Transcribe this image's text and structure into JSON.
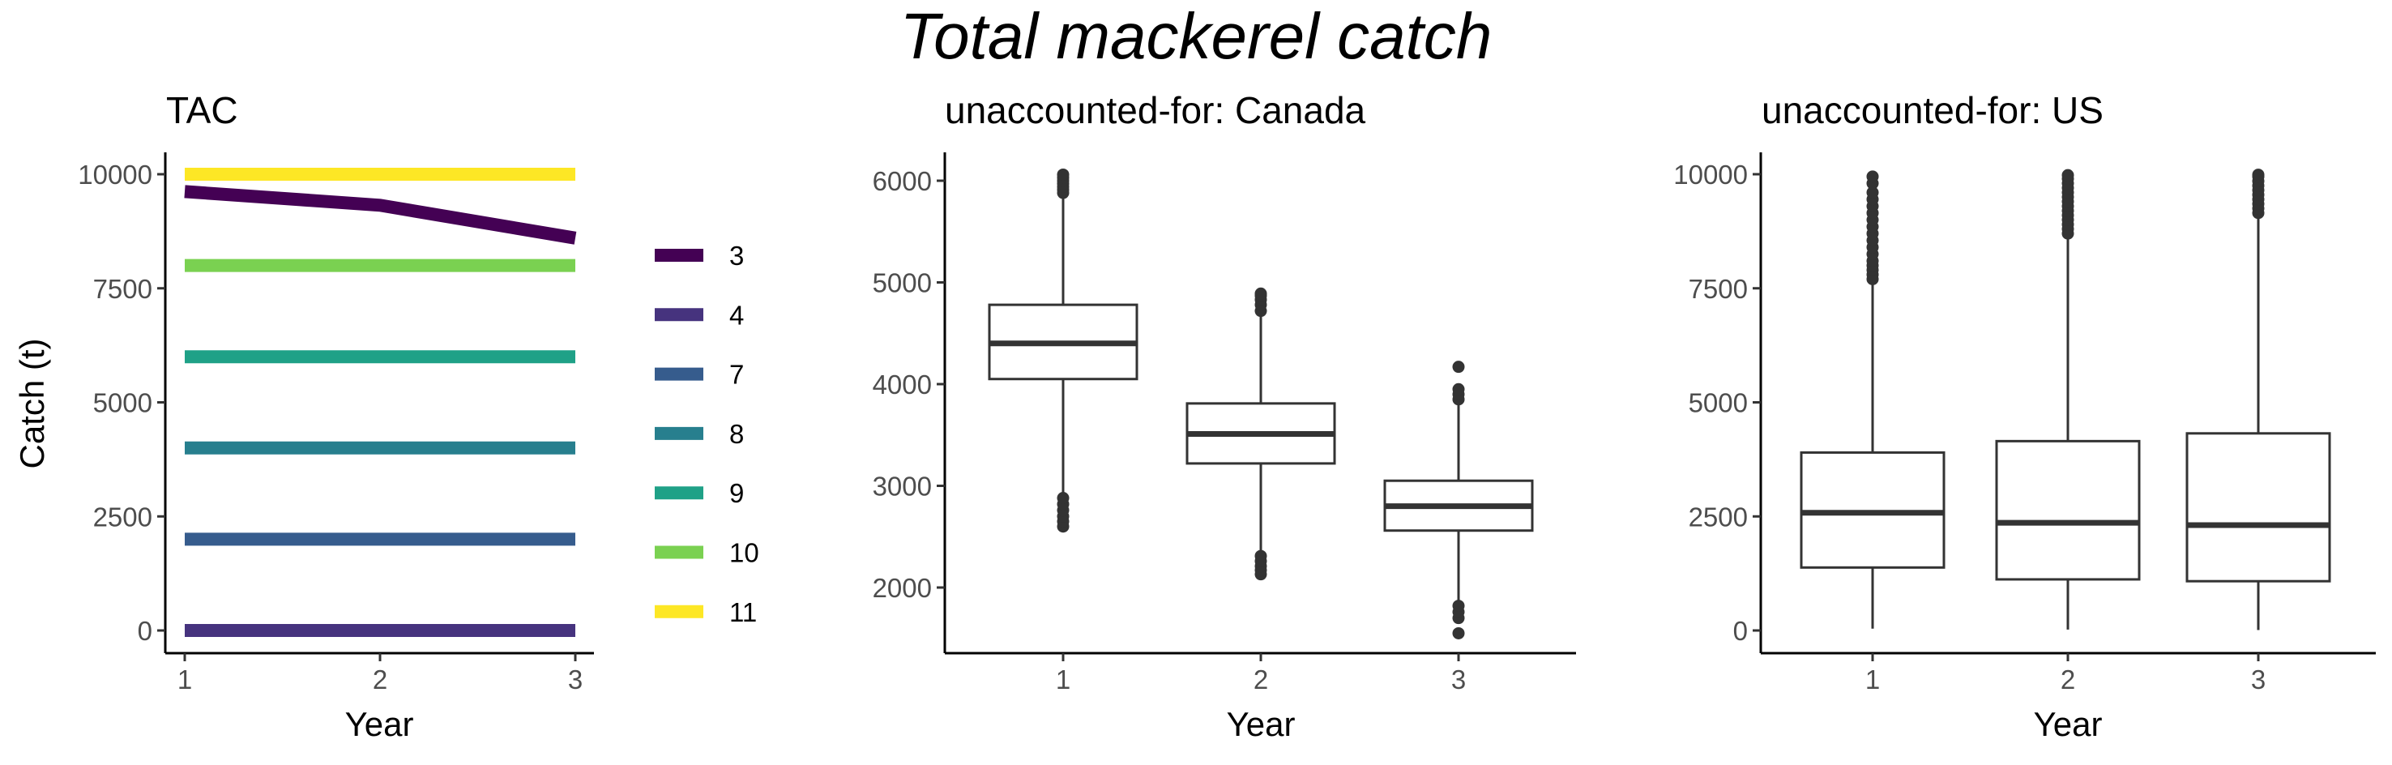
{
  "figure_title": "Total mackerel catch",
  "chart_data": [
    {
      "type": "line",
      "title": "TAC",
      "xlabel": "Year",
      "ylabel": "Catch (t)",
      "x": [
        1,
        2,
        3
      ],
      "xlim": [
        1,
        3
      ],
      "ylim": [
        0,
        10000
      ],
      "xticks": [
        "1",
        "2",
        "3"
      ],
      "yticks": [
        "0",
        "2500",
        "5000",
        "7500",
        "10000"
      ],
      "grid": false,
      "legend_position": "right",
      "series": [
        {
          "name": "3",
          "color": "#440154",
          "values": [
            9620,
            9320,
            8600
          ]
        },
        {
          "name": "4",
          "color": "#46337E",
          "values": [
            0,
            0,
            0
          ]
        },
        {
          "name": "7",
          "color": "#365C8D",
          "values": [
            2000,
            2000,
            2000
          ]
        },
        {
          "name": "8",
          "color": "#277F8E",
          "values": [
            4000,
            4000,
            4000
          ]
        },
        {
          "name": "9",
          "color": "#1FA187",
          "values": [
            6000,
            6000,
            6000
          ]
        },
        {
          "name": "10",
          "color": "#7AD151",
          "values": [
            8000,
            8000,
            8000
          ]
        },
        {
          "name": "11",
          "color": "#FDE725",
          "values": [
            10000,
            10000,
            10000
          ]
        }
      ]
    },
    {
      "type": "box",
      "title": "unaccounted-for: Canada",
      "xlabel": "Year",
      "ylabel": "",
      "categories": [
        "1",
        "2",
        "3"
      ],
      "ylim": [
        1500,
        6000
      ],
      "yticks": [
        "2000",
        "3000",
        "4000",
        "5000",
        "6000"
      ],
      "grid": false,
      "boxes": [
        {
          "category": "1",
          "whisker_low": 2900,
          "q1": 4050,
          "median": 4400,
          "q3": 4780,
          "whisker_high": 5850,
          "outliers": [
            5880,
            5910,
            5940,
            5970,
            6000,
            6030,
            6060,
            2600,
            2650,
            2700,
            2760,
            2820,
            2880
          ]
        },
        {
          "category": "2",
          "whisker_low": 2350,
          "q1": 3220,
          "median": 3510,
          "q3": 3810,
          "whisker_high": 4680,
          "outliers": [
            4720,
            4780,
            4830,
            4870,
            4890,
            2130,
            2170,
            2210,
            2260,
            2310
          ]
        },
        {
          "category": "3",
          "whisker_low": 1850,
          "q1": 2560,
          "median": 2800,
          "q3": 3050,
          "whisker_high": 3800,
          "outliers": [
            3850,
            3900,
            3950,
            4170,
            1550,
            1700,
            1760,
            1820
          ]
        }
      ]
    },
    {
      "type": "box",
      "title": "unaccounted-for: US",
      "xlabel": "Year",
      "ylabel": "",
      "categories": [
        "1",
        "2",
        "3"
      ],
      "ylim": [
        0,
        10000
      ],
      "yticks": [
        "0",
        "2500",
        "5000",
        "7500",
        "10000"
      ],
      "grid": false,
      "boxes": [
        {
          "category": "1",
          "whisker_low": 40,
          "q1": 1380,
          "median": 2580,
          "q3": 3900,
          "whisker_high": 7650,
          "outliers": [
            7700,
            7800,
            7900,
            8000,
            8100,
            8250,
            8400,
            8550,
            8700,
            8850,
            9000,
            9150,
            9300,
            9450,
            9600,
            9800,
            9950
          ]
        },
        {
          "category": "2",
          "whisker_low": 20,
          "q1": 1120,
          "median": 2360,
          "q3": 4150,
          "whisker_high": 8650,
          "outliers": [
            8700,
            8800,
            8900,
            9000,
            9100,
            9200,
            9300,
            9400,
            9500,
            9600,
            9700,
            9800,
            9900,
            9980
          ]
        },
        {
          "category": "3",
          "whisker_low": 10,
          "q1": 1080,
          "median": 2310,
          "q3": 4320,
          "whisker_high": 9100,
          "outliers": [
            9150,
            9250,
            9350,
            9450,
            9550,
            9650,
            9750,
            9850,
            9950,
            9990
          ]
        }
      ]
    }
  ]
}
